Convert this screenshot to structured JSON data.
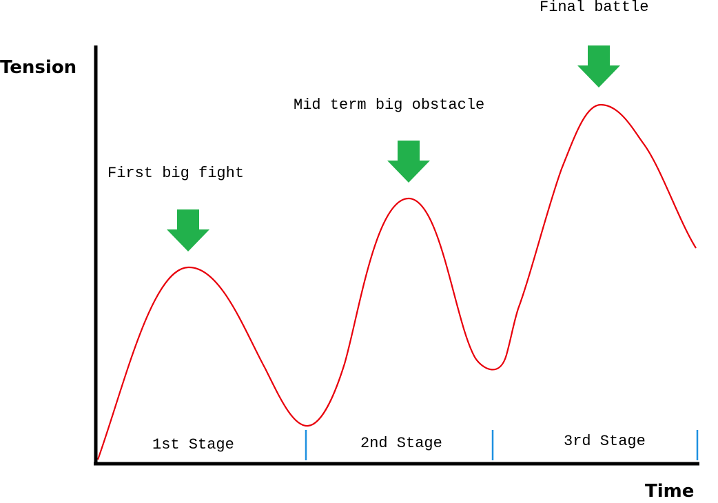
{
  "axes": {
    "y_label": "Tension",
    "x_label": "Time"
  },
  "annotations": [
    "First big fight",
    "Mid term big obstacle",
    "Final battle"
  ],
  "stages": [
    "1st Stage",
    "2nd Stage",
    "3rd Stage"
  ],
  "colors": {
    "curve": "#e8000b",
    "arrow": "#22b14c",
    "stage_divider": "#1e90e0",
    "axis": "#000000"
  },
  "icons": {
    "peak_marker": "arrow-down-icon"
  }
}
